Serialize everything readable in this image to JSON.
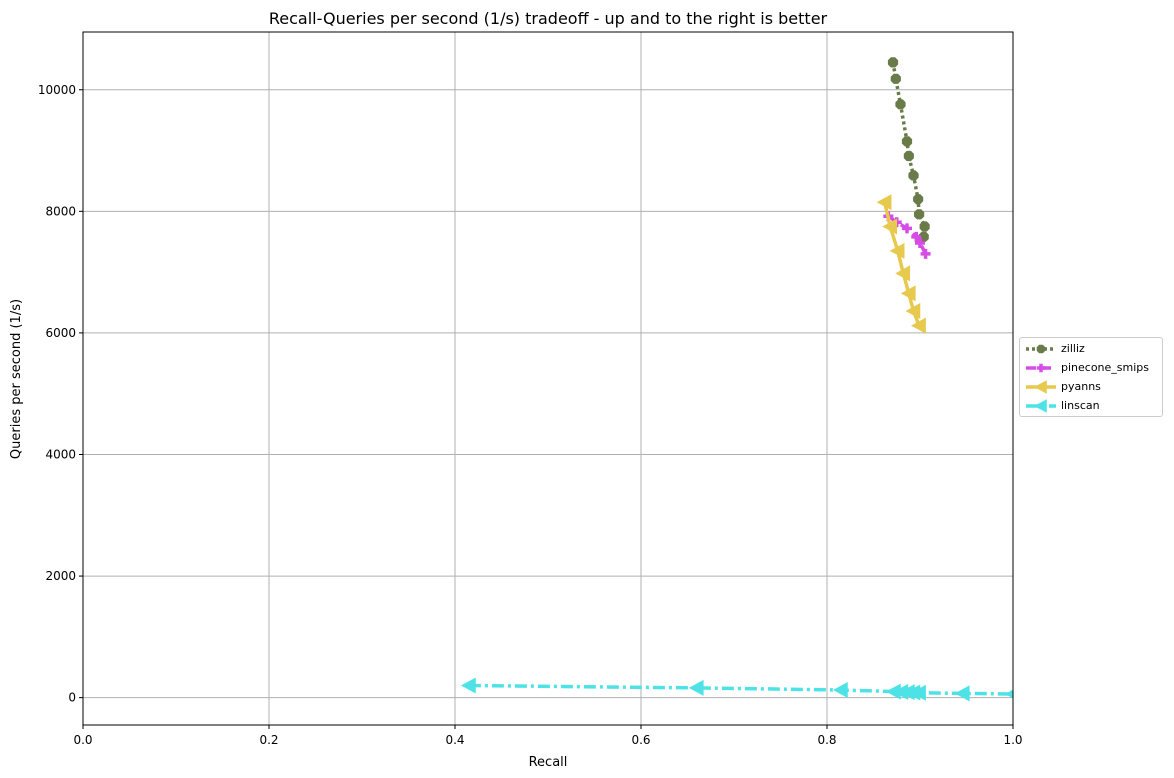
{
  "chart_data": {
    "type": "line",
    "title": "Recall-Queries per second (1/s) tradeoff - up and to the right is better",
    "xlabel": "Recall",
    "ylabel": "Queries per second (1/s)",
    "xlim": [
      0.0,
      1.0
    ],
    "ylim": [
      -450,
      10950
    ],
    "x_ticks": [
      "0.0",
      "0.2",
      "0.4",
      "0.6",
      "0.8",
      "1.0"
    ],
    "y_ticks": [
      "0",
      "2000",
      "4000",
      "6000",
      "8000",
      "10000"
    ],
    "x_tick_values": [
      0.0,
      0.2,
      0.4,
      0.6,
      0.8,
      1.0
    ],
    "y_tick_values": [
      0,
      2000,
      4000,
      6000,
      8000,
      10000
    ],
    "grid": true,
    "legend_position": "right",
    "series": [
      {
        "name": "zilliz",
        "color": "#687b48",
        "marker": "octagon",
        "linestyle": "dotted",
        "points": [
          [
            0.871,
            10450
          ],
          [
            0.874,
            10180
          ],
          [
            0.879,
            9760
          ],
          [
            0.886,
            9150
          ],
          [
            0.888,
            8910
          ],
          [
            0.893,
            8590
          ],
          [
            0.898,
            8200
          ],
          [
            0.899,
            7950
          ],
          [
            0.905,
            7750
          ],
          [
            0.904,
            7580
          ]
        ]
      },
      {
        "name": "pinecone_smips",
        "color": "#d74be6",
        "marker": "plus",
        "linestyle": "dashed",
        "points": [
          [
            0.866,
            7920
          ],
          [
            0.875,
            7820
          ],
          [
            0.886,
            7720
          ],
          [
            0.896,
            7580
          ],
          [
            0.9,
            7480
          ],
          [
            0.906,
            7300
          ]
        ]
      },
      {
        "name": "pyanns",
        "color": "#e6c94d",
        "marker": "triangle-left",
        "linestyle": "solid",
        "points": [
          [
            0.862,
            8150
          ],
          [
            0.868,
            7750
          ],
          [
            0.876,
            7350
          ],
          [
            0.882,
            6980
          ],
          [
            0.888,
            6650
          ],
          [
            0.893,
            6360
          ],
          [
            0.899,
            6120
          ]
        ]
      },
      {
        "name": "linscan",
        "color": "#4de3e6",
        "marker": "triangle-left",
        "linestyle": "dashdot",
        "points": [
          [
            0.415,
            200
          ],
          [
            0.66,
            160
          ],
          [
            0.815,
            125
          ],
          [
            0.872,
            100
          ],
          [
            0.88,
            95
          ],
          [
            0.887,
            90
          ],
          [
            0.893,
            85
          ],
          [
            0.899,
            80
          ],
          [
            0.946,
            70
          ],
          [
            1.0,
            60
          ]
        ]
      }
    ]
  }
}
